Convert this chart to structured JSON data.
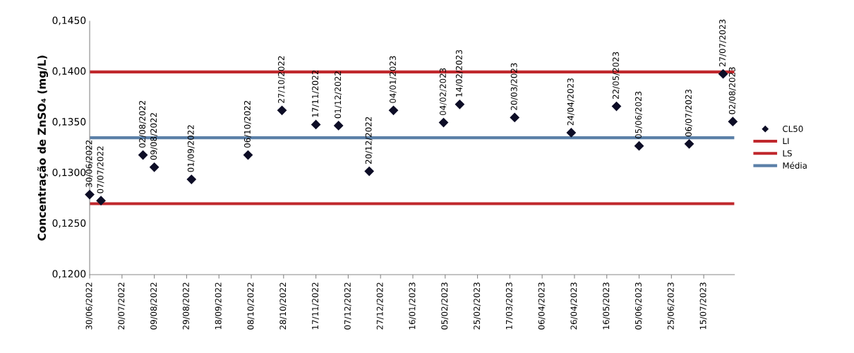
{
  "chart_data": {
    "type": "scatter",
    "ylabel": "Concentração de ZnSO₄ (mg/L)",
    "x": [
      "2022-06-30",
      "2022-07-07",
      "2022-08-02",
      "2022-08-09",
      "2022-09-01",
      "2022-10-06",
      "2022-10-27",
      "2022-11-17",
      "2022-12-01",
      "2022-12-20",
      "2023-01-04",
      "2023-02-04",
      "2023-02-14",
      "2023-03-20",
      "2023-04-24",
      "2023-05-22",
      "2023-06-05",
      "2023-07-06",
      "2023-07-27",
      "2023-08-02"
    ],
    "series": [
      {
        "name": "CL50",
        "color": "#0d0d26",
        "values": [
          0.1279,
          0.1273,
          0.1318,
          0.1306,
          0.1294,
          0.1318,
          0.1362,
          0.1348,
          0.1347,
          0.1302,
          0.1362,
          0.135,
          0.1368,
          0.1355,
          0.134,
          0.1366,
          0.1327,
          0.1329,
          0.1398,
          0.1351
        ],
        "value_labels": [
          "30/06/2022",
          "07/07/2022",
          "02/08/2022",
          "09/08/2022",
          "01/09/2022",
          "06/10/2022",
          "27/10/2022",
          "17/11/2022",
          "01/12/2022",
          "20/12/2022",
          "04/01/2023",
          "04/02/2023",
          "14/02/2023",
          "20/03/2023",
          "24/04/2023",
          "22/05/2023",
          "05/06/2023",
          "06/07/2023",
          "27/07/2023",
          "02/08/2023"
        ]
      }
    ],
    "ref_lines": [
      {
        "axis": "y",
        "value": 0.127,
        "label": "LI",
        "color": "#c0282d"
      },
      {
        "axis": "y",
        "value": 0.14,
        "label": "LS",
        "color": "#c0282d"
      },
      {
        "axis": "y",
        "value": 0.1335,
        "label": "Média",
        "color": "#5b80a8"
      }
    ],
    "xlim": [
      "2022-06-30",
      "2023-08-03"
    ],
    "xticks": [
      {
        "value": "2022-06-30",
        "label": "30/06/2022"
      },
      {
        "value": "2022-07-20",
        "label": "20/07/2022"
      },
      {
        "value": "2022-08-09",
        "label": "09/08/2022"
      },
      {
        "value": "2022-08-29",
        "label": "29/08/2022"
      },
      {
        "value": "2022-09-18",
        "label": "18/09/2022"
      },
      {
        "value": "2022-10-08",
        "label": "08/10/2022"
      },
      {
        "value": "2022-10-28",
        "label": "28/10/2022"
      },
      {
        "value": "2022-11-17",
        "label": "17/11/2022"
      },
      {
        "value": "2022-12-07",
        "label": "07/12/2022"
      },
      {
        "value": "2022-12-27",
        "label": "27/12/2022"
      },
      {
        "value": "2023-01-16",
        "label": "16/01/2023"
      },
      {
        "value": "2023-02-05",
        "label": "05/02/2023"
      },
      {
        "value": "2023-02-25",
        "label": "25/02/2023"
      },
      {
        "value": "2023-03-17",
        "label": "17/03/2023"
      },
      {
        "value": "2023-04-06",
        "label": "06/04/2023"
      },
      {
        "value": "2023-04-26",
        "label": "26/04/2023"
      },
      {
        "value": "2023-05-16",
        "label": "16/05/2023"
      },
      {
        "value": "2023-06-05",
        "label": "05/06/2023"
      },
      {
        "value": "2023-06-25",
        "label": "25/06/2023"
      },
      {
        "value": "2023-07-15",
        "label": "15/07/2023"
      }
    ],
    "ylim": [
      0.12,
      0.145
    ],
    "yticks": [
      {
        "value": 0.12,
        "label": "0,1200"
      },
      {
        "value": 0.125,
        "label": "0,1250"
      },
      {
        "value": 0.13,
        "label": "0,1300"
      },
      {
        "value": 0.135,
        "label": "0,1350"
      },
      {
        "value": 0.14,
        "label": "0,1400"
      },
      {
        "value": 0.145,
        "label": "0,1450"
      }
    ],
    "grid": false,
    "marker": "diamond",
    "legend": "right"
  }
}
